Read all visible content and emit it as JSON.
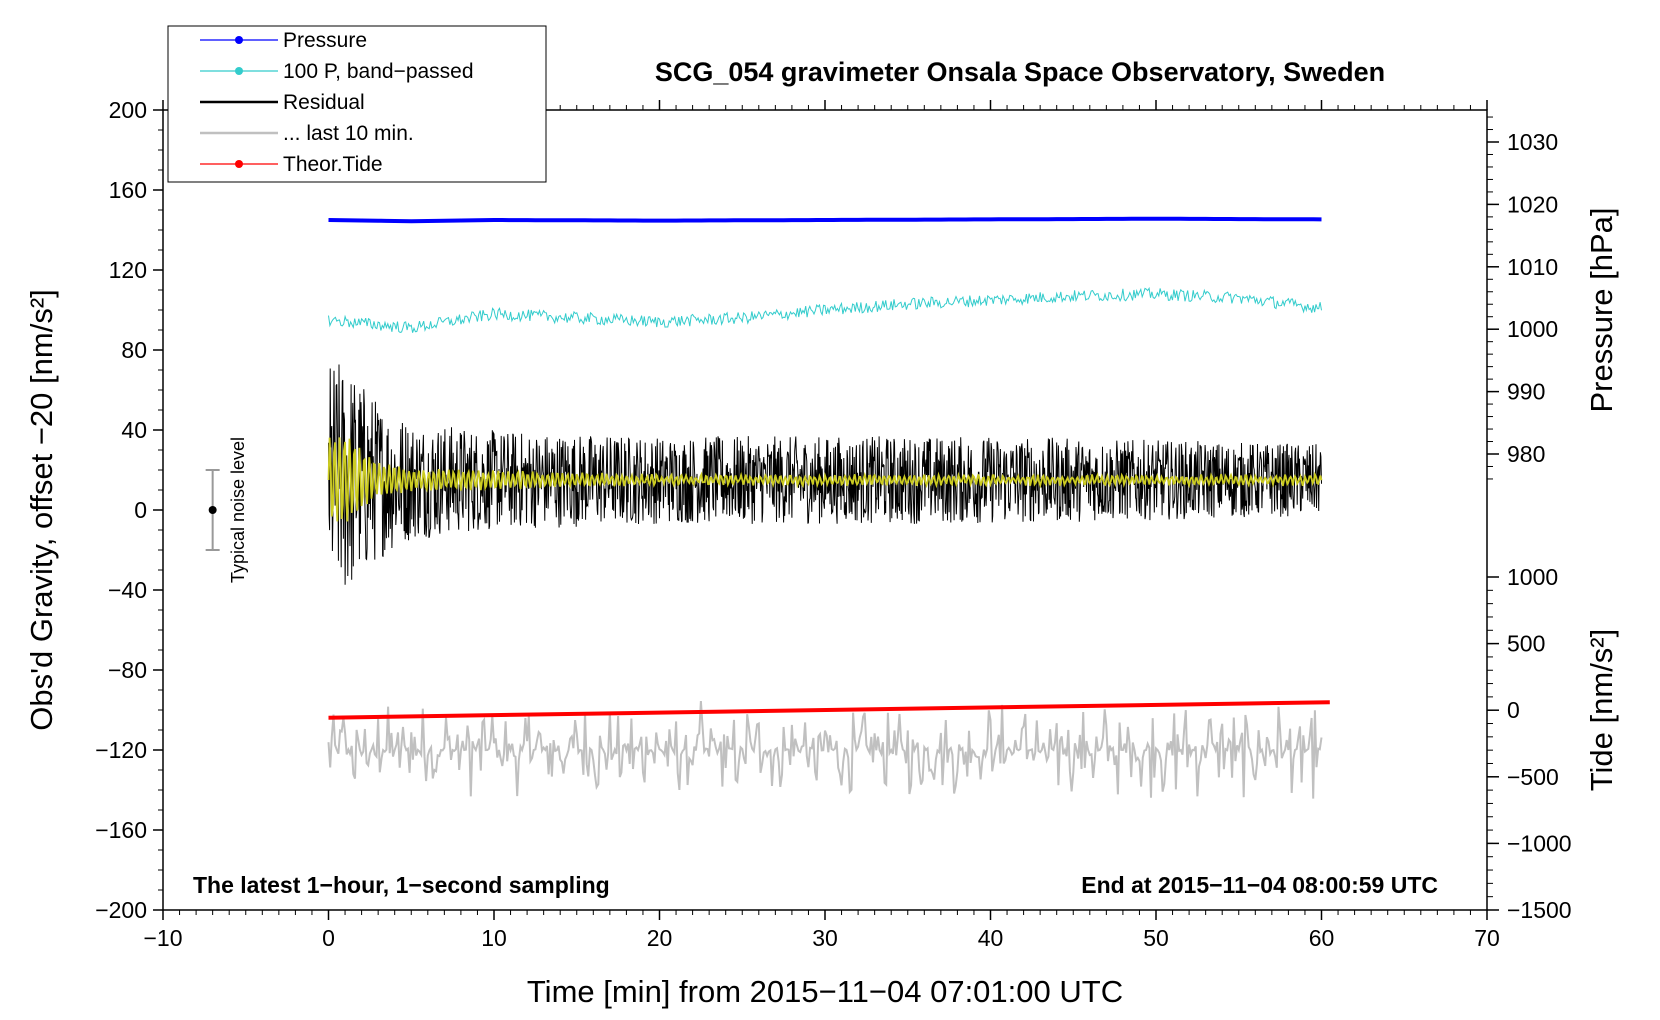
{
  "chart_data": {
    "type": "line",
    "title": "SCG_054 gravimeter Onsala Space Observatory, Sweden",
    "xlabel": "Time [min] from 2015−11−04 07:01:00 UTC",
    "ylabel_left": "Obs'd Gravity, offset −20 [nm/s²]",
    "ylabel_right_pressure": "Pressure [hPa]",
    "ylabel_right_tide": "Tide [nm/s²]",
    "xlim": [
      -10,
      70
    ],
    "ylim": [
      -200,
      200
    ],
    "pressure_range": [
      970,
      1030
    ],
    "tide_range": [
      -1500,
      1000
    ],
    "x_ticks": [
      "−10",
      "0",
      "10",
      "20",
      "30",
      "40",
      "50",
      "60",
      "70"
    ],
    "y_ticks": [
      "200",
      "160",
      "120",
      "80",
      "40",
      "0",
      "−40",
      "−80",
      "−120",
      "−160",
      "−200"
    ],
    "pressure_ticks": [
      "1030",
      "1020",
      "1010",
      "1000",
      "990",
      "980"
    ],
    "tide_ticks": [
      "1000",
      "500",
      "0",
      "−500",
      "−1000",
      "−1500"
    ],
    "annotation_left": "The latest 1−hour, 1−second sampling",
    "annotation_right": "End at 2015−11−04 08:00:59 UTC",
    "noise_label": "Typical noise level",
    "noise_level": 20,
    "noise_x": -7,
    "legend": [
      {
        "label": "Pressure",
        "color": "#0000ff",
        "marker": true
      },
      {
        "label": "100 P, band−passed",
        "color": "#33cccc",
        "marker": true
      },
      {
        "label": "Residual",
        "color": "#000000",
        "marker": false
      },
      {
        "label": "... last 10 min.",
        "color": "#c0c0c0",
        "marker": false
      },
      {
        "label": "Theor.Tide",
        "color": "#ff0000",
        "marker": true
      }
    ],
    "series": [
      {
        "name": "Pressure",
        "color": "#0000ff",
        "unit": "hPa",
        "x": [
          0,
          5,
          10,
          20,
          30,
          40,
          50,
          60
        ],
        "values": [
          1017.5,
          1017.3,
          1017.5,
          1017.4,
          1017.5,
          1017.6,
          1017.7,
          1017.6
        ]
      },
      {
        "name": "100 P, band−passed",
        "color": "#33cccc",
        "unit": "nm/s²",
        "x": [
          0,
          5,
          10,
          15,
          20,
          25,
          30,
          35,
          40,
          45,
          50,
          55,
          60
        ],
        "values": [
          95,
          91,
          98,
          96,
          94,
          96,
          100,
          103,
          105,
          107,
          108,
          106,
          101
        ]
      },
      {
        "name": "Residual",
        "color": "#000000",
        "unit": "nm/s²",
        "x": [
          0,
          1,
          3,
          5,
          10,
          20,
          30,
          40,
          50,
          60
        ],
        "values_mean": [
          15,
          15,
          15,
          15,
          15,
          15,
          15,
          15,
          15,
          15
        ],
        "amplitude": [
          60,
          60,
          40,
          30,
          25,
          22,
          22,
          22,
          20,
          18
        ]
      },
      {
        "name": "Residual (smoothed)",
        "color": "#cccc22",
        "unit": "nm/s²",
        "x": [
          0,
          1,
          3,
          5,
          10,
          20,
          30,
          40,
          50,
          60
        ],
        "values_mean": [
          15,
          15,
          15,
          15,
          15,
          15,
          15,
          15,
          15,
          15
        ],
        "amplitude": [
          22,
          22,
          8,
          5,
          4,
          2,
          2,
          2,
          2,
          2
        ]
      },
      {
        "name": "... last 10 min.",
        "color": "#c0c0c0",
        "unit": "nm/s² (offset)",
        "x": [
          0,
          60
        ],
        "values_mean": [
          -120,
          -120
        ],
        "amplitude": [
          25,
          25
        ]
      },
      {
        "name": "Theor.Tide",
        "color": "#ff0000",
        "unit": "nm/s²",
        "x": [
          0,
          60.5
        ],
        "values": [
          -56,
          60
        ]
      }
    ]
  }
}
